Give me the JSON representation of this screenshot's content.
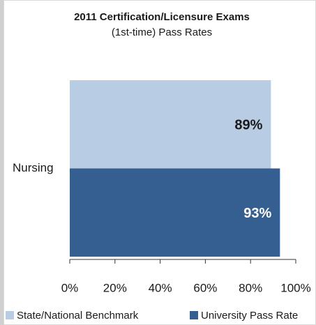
{
  "chart_data": {
    "type": "barh",
    "title": "2011 Certification/Licensure Exams",
    "subtitle": "(1st-time) Pass Rates",
    "categories": [
      "Nursing"
    ],
    "series": [
      {
        "name": "State/National Benchmark",
        "color": "#b8cce4",
        "values": [
          89
        ],
        "value_labels": [
          "89%"
        ],
        "label_color": "#1a1a1a"
      },
      {
        "name": "University Pass Rate",
        "color": "#365f91",
        "values": [
          93
        ],
        "value_labels": [
          "93%"
        ],
        "label_color": "#ffffff"
      }
    ],
    "xlim": [
      0,
      100
    ],
    "xticks": [
      {
        "value": 0,
        "label": "0%"
      },
      {
        "value": 20,
        "label": "20%"
      },
      {
        "value": 40,
        "label": "40%"
      },
      {
        "value": 60,
        "label": "60%"
      },
      {
        "value": 80,
        "label": "80%"
      },
      {
        "value": 100,
        "label": "100%"
      }
    ],
    "legend": "bottom"
  }
}
